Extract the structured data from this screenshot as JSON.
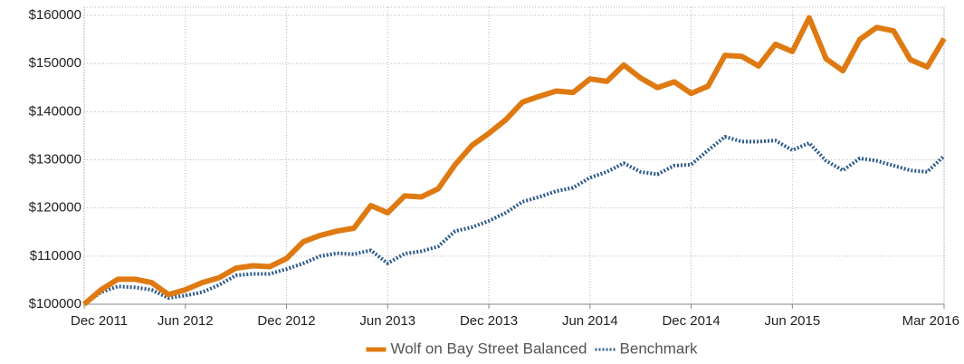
{
  "chart_data": {
    "type": "line",
    "categories": [
      "Dec 2011",
      null,
      null,
      null,
      null,
      null,
      "Jun 2012",
      null,
      null,
      null,
      null,
      null,
      "Dec 2012",
      null,
      null,
      null,
      null,
      null,
      "Jun 2013",
      null,
      null,
      null,
      null,
      null,
      "Dec 2013",
      null,
      null,
      null,
      null,
      null,
      "Jun 2014",
      null,
      null,
      null,
      null,
      null,
      "Dec 2014",
      null,
      null,
      null,
      null,
      null,
      "Jun 2015",
      null,
      null,
      null,
      null,
      null,
      null,
      null,
      null,
      "Mar 2016"
    ],
    "series": [
      {
        "name": "Wolf on Bay Street Balanced",
        "color": "#df7a12",
        "style": "solid",
        "values": [
          100000,
          103000,
          105200,
          105200,
          104500,
          102000,
          103000,
          104500,
          105500,
          107500,
          108000,
          107800,
          109500,
          113000,
          114300,
          115200,
          115800,
          120500,
          119000,
          122500,
          122300,
          124000,
          129000,
          133000,
          135500,
          138300,
          142000,
          143200,
          144300,
          144000,
          146800,
          146300,
          149700,
          147000,
          145000,
          146200,
          143800,
          145300,
          151700,
          151500,
          149500,
          154000,
          152500,
          159500,
          151000,
          148500,
          155000,
          157500,
          156800,
          150800,
          149300,
          155200
        ]
      },
      {
        "name": "Benchmark",
        "color": "#2e5a8c",
        "style": "dotted",
        "values": [
          100000,
          102500,
          103700,
          103500,
          103000,
          101300,
          101800,
          102500,
          104000,
          106000,
          106300,
          106300,
          107300,
          108500,
          110000,
          110600,
          110400,
          111200,
          108500,
          110500,
          111000,
          112000,
          115200,
          116000,
          117300,
          119000,
          121300,
          122300,
          123500,
          124200,
          126300,
          127500,
          129300,
          127500,
          127000,
          128800,
          129000,
          132000,
          134800,
          133800,
          133800,
          134000,
          132000,
          133500,
          129800,
          127800,
          130300,
          129800,
          128800,
          127800,
          127500,
          130800
        ]
      }
    ],
    "ylim": [
      100000,
      161700
    ],
    "yticks": [
      {
        "value": 100000,
        "label": "$100000"
      },
      {
        "value": 110000,
        "label": "$110000"
      },
      {
        "value": 120000,
        "label": "$120000"
      },
      {
        "value": 130000,
        "label": "$130000"
      },
      {
        "value": 140000,
        "label": "$140000"
      },
      {
        "value": 150000,
        "label": "$150000"
      },
      {
        "value": 160000,
        "label": "$160000"
      }
    ],
    "grid": true,
    "legend": "bottom"
  }
}
